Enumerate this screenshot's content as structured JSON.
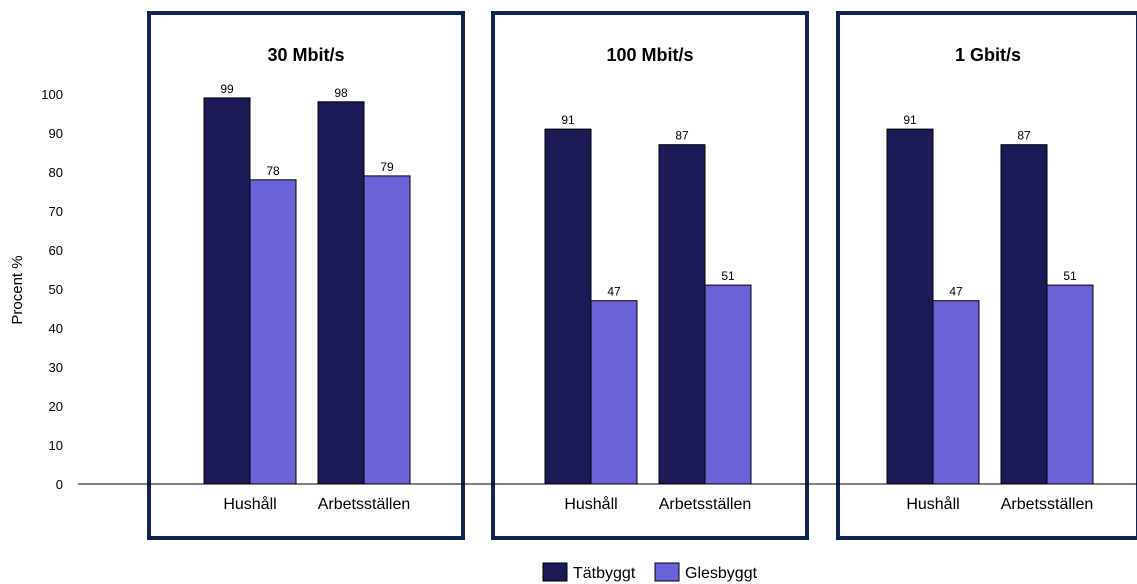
{
  "chart_data": {
    "type": "bar",
    "ylabel": "Procent %",
    "ylim": [
      0,
      100
    ],
    "yticks": [
      0,
      10,
      20,
      30,
      40,
      50,
      60,
      70,
      80,
      90,
      100
    ],
    "categories": [
      "Hushåll",
      "Arbetsställen"
    ],
    "panels": [
      {
        "title": "30 Mbit/s",
        "series": [
          {
            "name": "Tätbyggt",
            "values": [
              99,
              98
            ]
          },
          {
            "name": "Glesbyggt",
            "values": [
              78,
              79
            ]
          }
        ]
      },
      {
        "title": "100 Mbit/s",
        "series": [
          {
            "name": "Tätbyggt",
            "values": [
              91,
              87
            ]
          },
          {
            "name": "Glesbyggt",
            "values": [
              47,
              51
            ]
          }
        ]
      },
      {
        "title": "1 Gbit/s",
        "series": [
          {
            "name": "Tätbyggt",
            "values": [
              91,
              87
            ]
          },
          {
            "name": "Glesbyggt",
            "values": [
              47,
              51
            ]
          }
        ]
      }
    ],
    "legend": [
      "Tätbyggt",
      "Glesbyggt"
    ],
    "legend_position": "bottom-center",
    "colors": {
      "Tätbyggt": "#1c1a56",
      "Glesbyggt": "#6a62d6",
      "panel_border": "#0f2550"
    },
    "grid": false
  }
}
